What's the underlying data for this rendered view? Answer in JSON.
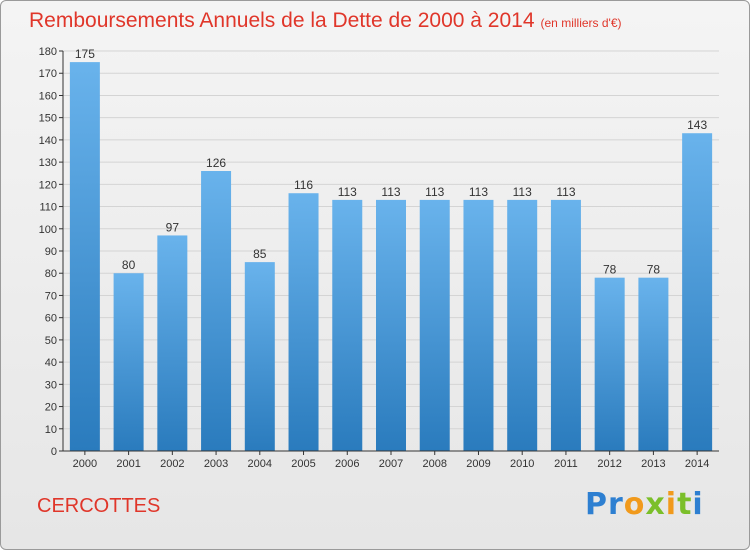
{
  "header": {
    "title": "Remboursements Annuels de la Dette de 2000 à 2014",
    "unit": "(en milliers d'€)"
  },
  "footer": {
    "town": "CERCOTTES",
    "brand": "Proxiti"
  },
  "colors": {
    "title": "#e0362a",
    "bar_top": "#69b3ec",
    "bar_bottom": "#2a7bbd",
    "grid": "#d4d4d4",
    "axis": "#333333"
  },
  "chart_data": {
    "type": "bar",
    "title": "Remboursements Annuels de la Dette de 2000 à 2014",
    "subtitle": "(en milliers d'€)",
    "categories": [
      "2000",
      "2001",
      "2002",
      "2003",
      "2004",
      "2005",
      "2006",
      "2007",
      "2008",
      "2009",
      "2010",
      "2011",
      "2012",
      "2013",
      "2014"
    ],
    "values": [
      175,
      80,
      97,
      126,
      85,
      116,
      113,
      113,
      113,
      113,
      113,
      113,
      78,
      78,
      143
    ],
    "ylim": [
      0,
      180
    ],
    "ytick_step": 10,
    "grid": true,
    "data_labels": true
  }
}
